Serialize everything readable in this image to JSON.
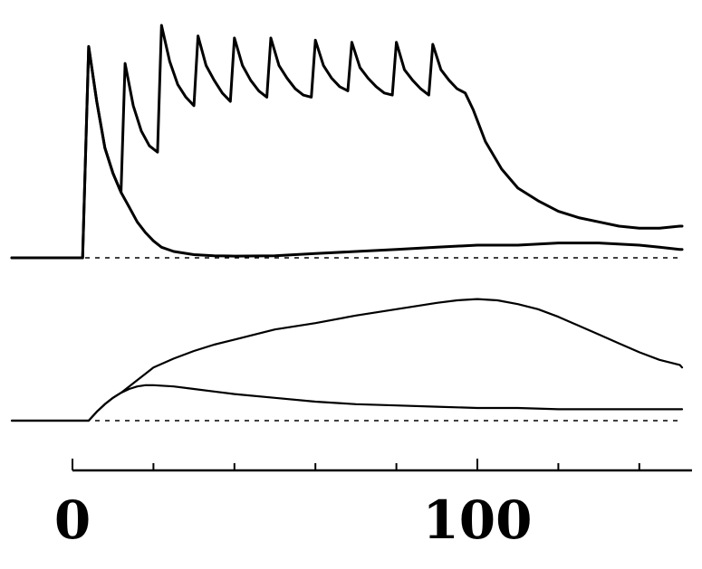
{
  "chart_data": [
    {
      "type": "line",
      "title": "",
      "xlabel": "",
      "ylabel": "",
      "xlim": [
        0,
        153
      ],
      "ylim": [
        0,
        1.1
      ],
      "grid": false,
      "legend": "none",
      "baseline": 0,
      "series": [
        {
          "x": [
            -15,
            2.5,
            4,
            6,
            8,
            10,
            12,
            14,
            16,
            18,
            20,
            22,
            25,
            30,
            35,
            40,
            50,
            60,
            70,
            80,
            90,
            100,
            110,
            120,
            130,
            140,
            145,
            150,
            153
          ],
          "y": [
            0,
            0,
            1.0,
            0.74,
            0.52,
            0.4,
            0.31,
            0.24,
            0.17,
            0.12,
            0.08,
            0.05,
            0.03,
            0.015,
            0.01,
            0.008,
            0.01,
            0.02,
            0.03,
            0.04,
            0.05,
            0.06,
            0.06,
            0.07,
            0.07,
            0.06,
            0.05,
            0.04,
            0.04
          ]
        },
        {
          "x": [
            -15,
            2.5,
            4,
            6,
            8,
            10,
            12,
            13,
            15,
            17,
            19,
            21,
            22,
            24,
            26,
            28,
            30,
            31,
            33,
            35,
            37,
            39,
            40,
            42,
            44,
            46,
            48,
            49,
            51,
            53,
            55,
            57,
            59,
            60,
            62,
            64,
            66,
            68,
            69,
            71,
            73,
            75,
            77,
            79,
            80,
            82,
            84,
            86,
            88,
            89,
            91,
            93,
            95,
            97,
            99,
            102,
            106,
            110,
            115,
            120,
            125,
            130,
            135,
            140,
            145,
            150,
            153
          ],
          "y": [
            0,
            0,
            1.0,
            0.74,
            0.52,
            0.4,
            0.31,
            0.92,
            0.72,
            0.6,
            0.53,
            0.5,
            1.1,
            0.93,
            0.82,
            0.76,
            0.72,
            1.05,
            0.91,
            0.84,
            0.78,
            0.74,
            1.04,
            0.91,
            0.84,
            0.79,
            0.76,
            1.04,
            0.91,
            0.85,
            0.8,
            0.77,
            0.76,
            1.03,
            0.91,
            0.85,
            0.81,
            0.79,
            1.02,
            0.9,
            0.85,
            0.81,
            0.78,
            0.77,
            1.02,
            0.89,
            0.84,
            0.8,
            0.77,
            1.01,
            0.89,
            0.84,
            0.8,
            0.78,
            0.7,
            0.55,
            0.42,
            0.33,
            0.27,
            0.22,
            0.19,
            0.17,
            0.15,
            0.14,
            0.14,
            0.15,
            0.15
          ]
        }
      ]
    },
    {
      "type": "line",
      "title": "",
      "xlabel": "",
      "ylabel": "",
      "xlim": [
        0,
        153
      ],
      "ylim": [
        0,
        1.0
      ],
      "grid": false,
      "legend": "none",
      "baseline": 0,
      "series": [
        {
          "x": [
            -15,
            4,
            6,
            8,
            10,
            12,
            14,
            16,
            18,
            20,
            25,
            30,
            35,
            40,
            50,
            60,
            70,
            80,
            90,
            100,
            110,
            120,
            130,
            140,
            150,
            153
          ],
          "y": [
            0,
            0,
            0.07,
            0.13,
            0.18,
            0.22,
            0.25,
            0.27,
            0.28,
            0.28,
            0.27,
            0.25,
            0.23,
            0.21,
            0.18,
            0.15,
            0.13,
            0.12,
            0.11,
            0.1,
            0.1,
            0.09,
            0.09,
            0.09,
            0.09,
            0.09
          ]
        },
        {
          "x": [
            -15,
            4,
            6,
            8,
            10,
            12,
            14,
            16,
            18,
            20,
            25,
            30,
            35,
            40,
            50,
            60,
            70,
            80,
            90,
            95,
            100,
            105,
            110,
            115,
            120,
            125,
            130,
            135,
            140,
            145,
            150,
            153
          ],
          "y": [
            0,
            0,
            0.07,
            0.13,
            0.18,
            0.22,
            0.27,
            0.32,
            0.37,
            0.42,
            0.49,
            0.55,
            0.6,
            0.64,
            0.72,
            0.77,
            0.83,
            0.88,
            0.93,
            0.95,
            0.96,
            0.95,
            0.92,
            0.88,
            0.82,
            0.75,
            0.68,
            0.61,
            0.54,
            0.48,
            0.44,
            0.42
          ]
        }
      ]
    }
  ],
  "time_axis": {
    "range": [
      0,
      153
    ],
    "tick_step": 20,
    "labels": [
      {
        "value": 0,
        "text": "0"
      },
      {
        "value": 100,
        "text": "100"
      }
    ]
  }
}
